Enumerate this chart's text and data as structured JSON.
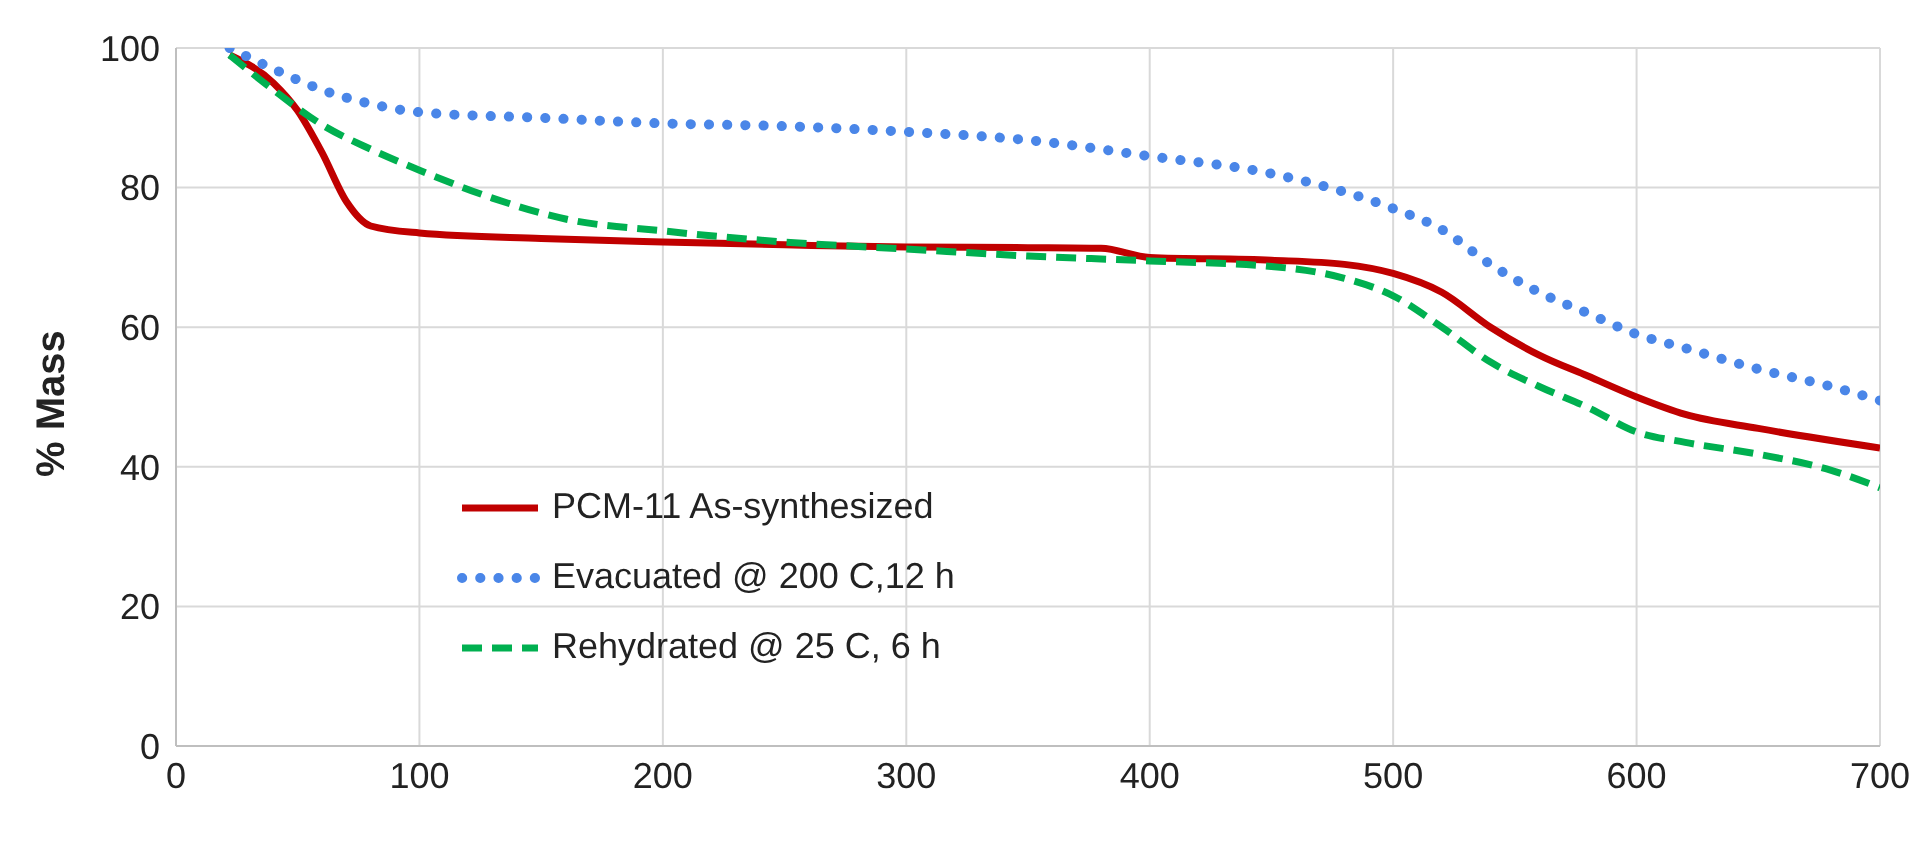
{
  "chart_data": {
    "type": "line",
    "ylabel": "% Mass",
    "xlim": [
      0,
      700
    ],
    "xticks": [
      0,
      100,
      200,
      300,
      400,
      500,
      600,
      700
    ],
    "ylim": [
      0,
      100
    ],
    "yticks": [
      0,
      20,
      40,
      60,
      80,
      100
    ],
    "grid": true,
    "legend": "bottom left",
    "marker": "none",
    "series": [
      {
        "name": "PCM-11 As-synthesized",
        "color": "#c00000",
        "line_style": "solid",
        "x": [
          22,
          40,
          50,
          60,
          70,
          80,
          100,
          150,
          200,
          250,
          300,
          350,
          380,
          400,
          450,
          480,
          500,
          520,
          540,
          560,
          580,
          600,
          620,
          650,
          700
        ],
        "values": [
          99,
          95,
          91,
          85,
          78,
          74.5,
          73.5,
          72.7,
          72.2,
          71.8,
          71.5,
          71.4,
          71.3,
          70,
          69.6,
          69,
          67.7,
          65,
          60,
          56,
          53,
          50,
          47.5,
          45.5,
          42.7
        ]
      },
      {
        "name": "Evacuated @ 200 C,12 h",
        "color": "#4a86e8",
        "line_style": "dotted",
        "x": [
          22,
          40,
          60,
          80,
          100,
          150,
          200,
          250,
          300,
          350,
          400,
          450,
          500,
          520,
          540,
          560,
          580,
          600,
          620,
          650,
          680,
          700
        ],
        "values": [
          100,
          97,
          94,
          92,
          90.8,
          90,
          89.2,
          88.8,
          88,
          86.8,
          84.5,
          82,
          77,
          74,
          69,
          65,
          62,
          59,
          57,
          54,
          51.5,
          49.5
        ]
      },
      {
        "name": "Rehydrated @ 25 C, 6 h",
        "color": "#00b050",
        "line_style": "dashed",
        "x": [
          22,
          40,
          60,
          80,
          100,
          130,
          160,
          200,
          250,
          300,
          350,
          400,
          450,
          480,
          500,
          520,
          540,
          560,
          580,
          600,
          620,
          650,
          680,
          700
        ],
        "values": [
          99,
          94,
          89,
          85.5,
          82.5,
          78.5,
          75.5,
          73.8,
          72.2,
          71.2,
          70.2,
          69.5,
          68.7,
          67,
          64.5,
          60,
          55,
          51.5,
          48.5,
          45,
          43.5,
          41.8,
          39.5,
          37
        ]
      }
    ]
  }
}
